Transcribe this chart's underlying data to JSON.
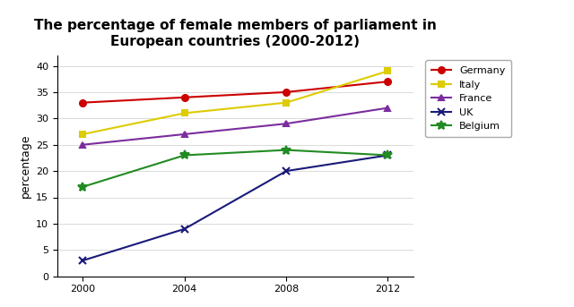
{
  "title": "The percentage of female members of parliament in\nEuropean countries (2000-2012)",
  "xlabel": "",
  "ylabel": "percentage",
  "years": [
    2000,
    2004,
    2008,
    2012
  ],
  "series": [
    {
      "label": "Germany",
      "values": [
        33,
        34,
        35,
        37
      ],
      "color": "#cc0000",
      "marker": "o",
      "markersize": 5
    },
    {
      "label": "Italy",
      "values": [
        27,
        31,
        33,
        39
      ],
      "color": "#ddcc00",
      "marker": "s",
      "markersize": 5
    },
    {
      "label": "France",
      "values": [
        25,
        27,
        29,
        32
      ],
      "color": "#7b2d9e",
      "marker": "^",
      "markersize": 5
    },
    {
      "label": "UK",
      "values": [
        3,
        9,
        20,
        23
      ],
      "color": "#1a1a7a",
      "marker": "x",
      "markersize": 6
    },
    {
      "label": "Belgium",
      "values": [
        17,
        23,
        24,
        23
      ],
      "color": "#228B22",
      "marker": "*",
      "markersize": 7
    }
  ],
  "xlim": [
    1999,
    2013
  ],
  "ylim": [
    0,
    42
  ],
  "xticks": [
    2000,
    2004,
    2008,
    2012
  ],
  "yticks": [
    0,
    5,
    10,
    15,
    20,
    25,
    30,
    35,
    40
  ],
  "grid": true,
  "background_color": "#ffffff",
  "title_fontsize": 11,
  "axis_label_fontsize": 9,
  "tick_fontsize": 8,
  "legend_fontsize": 8,
  "linewidth": 1.5
}
